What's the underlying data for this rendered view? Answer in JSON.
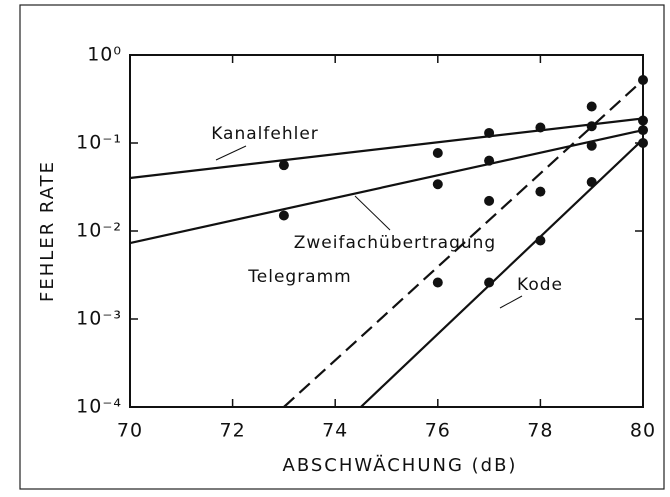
{
  "chart_data": {
    "type": "line",
    "x_label": "ABSCHWÄCHUNG (dB)",
    "y_label": "FEHLER RATE",
    "xlim": [
      70,
      80
    ],
    "xticks": [
      70,
      72,
      74,
      76,
      78,
      80
    ],
    "ylim": [
      0.0001,
      1
    ],
    "log_y": true,
    "yticks": [
      {
        "value": 1,
        "label": "10⁰"
      },
      {
        "value": 0.1,
        "label": "10⁻¹"
      },
      {
        "value": 0.01,
        "label": "10⁻²"
      },
      {
        "value": 0.001,
        "label": "10⁻³"
      },
      {
        "value": 0.0001,
        "label": "10⁻⁴"
      }
    ],
    "series": [
      {
        "name": "Kanalfehler",
        "color": "#111111",
        "style": "solid",
        "x": [
          73,
          76,
          77,
          78,
          79,
          80
        ],
        "values": [
          0.056,
          0.077,
          0.13,
          0.15,
          0.155,
          0.18
        ],
        "line": {
          "x": [
            70,
            80
          ],
          "values": [
            0.04,
            0.19
          ]
        }
      },
      {
        "name": "Zweifachübertragung",
        "color": "#111111",
        "style": "solid",
        "x": [
          73,
          76,
          77,
          78,
          79,
          80
        ],
        "values": [
          0.015,
          0.034,
          0.063,
          0.028,
          0.093,
          0.14
        ],
        "line": {
          "x": [
            70,
            80
          ],
          "values": [
            0.0073,
            0.14
          ]
        }
      },
      {
        "name": "Telegramm",
        "color": "#111111",
        "style": "dashed",
        "x": [
          77,
          79,
          80
        ],
        "values": [
          0.022,
          0.26,
          0.52
        ],
        "line": {
          "x": [
            73,
            80
          ],
          "values": [
            0.0001,
            0.52
          ]
        }
      },
      {
        "name": "Kode",
        "color": "#111111",
        "style": "solid",
        "x": [
          76,
          77,
          78,
          79,
          80
        ],
        "values": [
          0.0026,
          0.0026,
          0.0078,
          0.036,
          0.1
        ],
        "line": {
          "x": [
            74.5,
            80
          ],
          "values": [
            0.0001,
            0.11
          ]
        }
      }
    ]
  }
}
